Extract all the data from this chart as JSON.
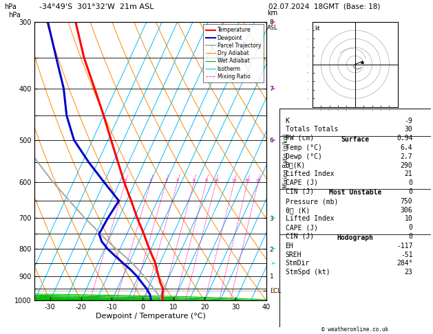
{
  "title_left": "-34°49'S  301°32'W  21m ASL",
  "title_right": "02.07.2024  18GMT  (Base: 18)",
  "xlabel": "Dewpoint / Temperature (°C)",
  "isotherm_temps": [
    -40,
    -35,
    -30,
    -25,
    -20,
    -15,
    -10,
    -5,
    0,
    5,
    10,
    15,
    20,
    25,
    30,
    35,
    40,
    45
  ],
  "isotherm_color": "#00bbff",
  "dry_adiabat_color": "#ff8800",
  "wet_adiabat_color": "#00bb00",
  "mixing_ratio_color": "#ff00aa",
  "mixing_ratio_values": [
    1,
    2,
    3,
    4,
    6,
    8,
    10,
    15,
    20,
    25
  ],
  "T_min": -35,
  "T_max": 40,
  "P_min": 300,
  "P_max": 1000,
  "skew": 0.55,
  "temperature_profile": {
    "pressure": [
      1000,
      975,
      950,
      925,
      900,
      875,
      850,
      825,
      800,
      775,
      750,
      700,
      650,
      600,
      550,
      500,
      450,
      400,
      350,
      300
    ],
    "temp": [
      6.4,
      5.5,
      4.8,
      3.0,
      1.5,
      0.0,
      -1.5,
      -3.5,
      -5.5,
      -7.5,
      -9.5,
      -14.0,
      -18.5,
      -23.5,
      -28.5,
      -34.0,
      -40.0,
      -47.0,
      -55.0,
      -63.0
    ]
  },
  "dewpoint_profile": {
    "pressure": [
      1000,
      975,
      950,
      925,
      900,
      875,
      850,
      825,
      800,
      775,
      750,
      700,
      650,
      600,
      550,
      500,
      450,
      400,
      350,
      300
    ],
    "dewp": [
      2.7,
      1.5,
      -0.5,
      -3.0,
      -5.5,
      -8.5,
      -12.0,
      -15.5,
      -19.0,
      -22.0,
      -24.0,
      -23.5,
      -22.5,
      -30.0,
      -38.0,
      -46.0,
      -52.0,
      -57.0,
      -64.0,
      -72.0
    ]
  },
  "parcel_profile": {
    "pressure": [
      1000,
      975,
      950,
      925,
      900,
      875,
      850,
      825,
      800,
      775,
      750,
      700,
      650,
      600,
      550,
      500,
      450,
      400,
      350,
      300
    ],
    "temp": [
      6.4,
      4.2,
      1.8,
      -0.6,
      -3.2,
      -6.0,
      -9.0,
      -12.5,
      -16.2,
      -20.0,
      -23.5,
      -31.0,
      -38.5,
      -46.5,
      -54.5,
      -62.5,
      -70.5,
      -78.5,
      -86.5,
      -94.5
    ]
  },
  "lcl_pressure": 958,
  "temp_color": "#ff0000",
  "dewp_color": "#0000cc",
  "parcel_color": "#aaaaaa",
  "km_labels": {
    "300": "8",
    "400": "7",
    "500": "6",
    "700": "3",
    "800": "2",
    "900": "1",
    "958": "LCL"
  },
  "info_panel": {
    "K": "-9",
    "Totals Totals": "30",
    "PW (cm)": "0.94",
    "Surface_title": "Surface",
    "Temp (C)": "6.4",
    "Dewp (C)": "2.7",
    "theta_e_K": "290",
    "Lifted Index": "21",
    "CAPE (J)": "0",
    "CIN (J)": "0",
    "MU_title": "Most Unstable",
    "Pressure (mb)": "750",
    "theta_e2_K": "306",
    "Lifted Index2": "10",
    "CAPE2 (J)": "0",
    "CIN2 (J)": "0",
    "Hodo_title": "Hodograph",
    "EH": "-117",
    "SREH": "-51",
    "StmDir": "284°",
    "StmSpd (kt)": "23"
  },
  "bg_color": "#ffffff"
}
